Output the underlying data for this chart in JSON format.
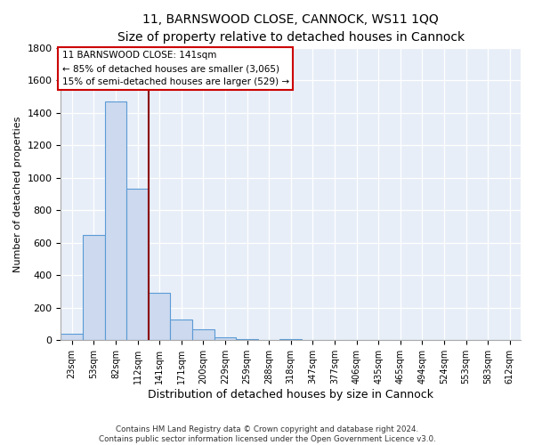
{
  "title": "11, BARNSWOOD CLOSE, CANNOCK, WS11 1QQ",
  "subtitle": "Size of property relative to detached houses in Cannock",
  "xlabel": "Distribution of detached houses by size in Cannock",
  "ylabel": "Number of detached properties",
  "bin_labels": [
    "23sqm",
    "53sqm",
    "82sqm",
    "112sqm",
    "141sqm",
    "171sqm",
    "200sqm",
    "229sqm",
    "259sqm",
    "288sqm",
    "318sqm",
    "347sqm",
    "377sqm",
    "406sqm",
    "435sqm",
    "465sqm",
    "494sqm",
    "524sqm",
    "553sqm",
    "583sqm",
    "612sqm"
  ],
  "bar_heights": [
    40,
    650,
    1470,
    935,
    290,
    130,
    65,
    20,
    5,
    0,
    8,
    0,
    0,
    0,
    0,
    0,
    0,
    0,
    0,
    0,
    0
  ],
  "bar_color": "#ccd9ee",
  "bar_edge_color": "#5b9bd5",
  "marker_index": 4,
  "marker_label": "11 BARNSWOOD CLOSE: 141sqm",
  "annotation_line1": "← 85% of detached houses are smaller (3,065)",
  "annotation_line2": "15% of semi-detached houses are larger (529) →",
  "marker_color": "#8b0000",
  "ylim": [
    0,
    1800
  ],
  "yticks": [
    0,
    200,
    400,
    600,
    800,
    1000,
    1200,
    1400,
    1600,
    1800
  ],
  "footer_line1": "Contains HM Land Registry data © Crown copyright and database right 2024.",
  "footer_line2": "Contains public sector information licensed under the Open Government Licence v3.0.",
  "fig_bg_color": "#ffffff",
  "plot_bg_color": "#e8eef8"
}
